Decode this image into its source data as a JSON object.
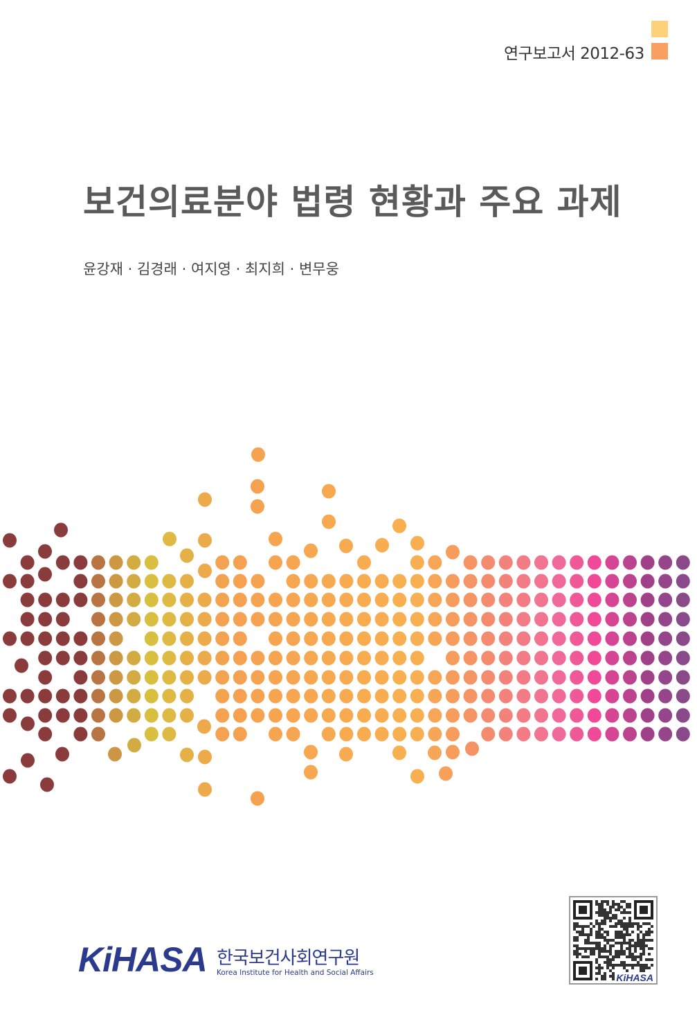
{
  "header": {
    "report_number": "연구보고서 2012-63",
    "accent_colors": [
      "#fdd07a",
      "#f8a060"
    ]
  },
  "cover": {
    "title": "보건의료분야 법령 현황과 주요 과제",
    "authors": "윤강재 · 김경래 · 여지영 · 최지희 · 변무웅",
    "dot_palette": [
      "#8a3c3c",
      "#c98a45",
      "#d8c040",
      "#f5a050",
      "#f8b050",
      "#f59068",
      "#f06e98",
      "#f04898",
      "#a04088",
      "#8a4a8a"
    ]
  },
  "footer": {
    "logo_mark": "KiHASA",
    "institute_ko": "한국보건사회연구원",
    "institute_en": "Korea Institute for Health and Social Affairs",
    "qr_label": "KiHASA",
    "brand_color": "#2b3a8c"
  }
}
